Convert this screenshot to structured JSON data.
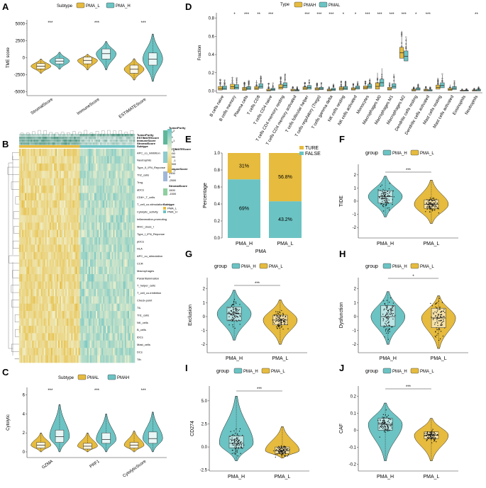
{
  "colors": {
    "gold": "#E6BB3E",
    "teal": "#6CC3C3",
    "grid": "#e6e6e6",
    "axis": "#333333"
  },
  "panel_letters": [
    "A",
    "B",
    "C",
    "D",
    "E",
    "F",
    "G",
    "H",
    "I",
    "J"
  ],
  "chart_data": [
    {
      "id": "A",
      "type": "violin",
      "legend_title": "Subtype",
      "legend": [
        "PMA_L",
        "PMA_H"
      ],
      "ylabel": "TME score",
      "yticks": [
        5000,
        2500,
        0,
        -2500,
        -5000
      ],
      "ylim": [
        -5600,
        5600
      ],
      "categories": [
        "StromalScore",
        "ImmuneScore",
        "ESTIMATEScore"
      ],
      "significance": [
        "***",
        "***",
        "***"
      ],
      "series": [
        {
          "name": "PMA_L",
          "medians": [
            -1250,
            -400,
            -1700
          ],
          "q1": [
            -1650,
            -900,
            -2300
          ],
          "q3": [
            -850,
            100,
            -1100
          ],
          "min": [
            -2300,
            -1800,
            -3300
          ],
          "max": [
            -200,
            500,
            -150
          ]
        },
        {
          "name": "PMA_H",
          "medians": [
            -500,
            600,
            -200
          ],
          "q1": [
            -900,
            -200,
            -1100
          ],
          "q3": [
            -100,
            1300,
            700
          ],
          "min": [
            -1700,
            -1800,
            -3500
          ],
          "max": [
            800,
            2400,
            3500
          ]
        }
      ]
    },
    {
      "id": "B",
      "type": "heatmap",
      "rows": [
        "APC_co_inhibition",
        "Neutrophils",
        "Type_II_IFN_Reponse",
        "Th2_cells",
        "Treg",
        "aDCs",
        "CD8+_T_cells",
        "T_cell_co-stimulation",
        "Cytolytic_activity",
        "Inflammation-promoting",
        "MHC_class_I",
        "Type_I_IFN_Reponse",
        "pDCs",
        "HLA",
        "APC_co_stimulation",
        "CCR",
        "Macrophages",
        "Parainflammation",
        "T_helper_cells",
        "T_cell_co-inhibition",
        "Check-point",
        "TIL",
        "Th1_cells",
        "NK_cells",
        "B_cells",
        "iDCs",
        "Mast_cells",
        "DCs",
        "Tfh"
      ],
      "annotation_tracks": [
        "TumorPurity",
        "ESTIMATEScore",
        "ImmuneScore",
        "StromalScore",
        "Subtype"
      ],
      "legend": [
        {
          "title": "TumorPurity",
          "ticks": [
            "0.9",
            "0.6",
            "0.3"
          ]
        },
        {
          "title": "ESTIMATEScore",
          "ticks": [
            "5000",
            "2500",
            "0",
            "-2500"
          ]
        },
        {
          "title": "ImmuneScore",
          "ticks": [
            "2500",
            "0",
            "-2500"
          ]
        },
        {
          "title": "StromalScore",
          "ticks": [
            "1500",
            "-1500"
          ]
        },
        {
          "title": "Subtype",
          "entries": [
            "PMA_L",
            "PMA_H"
          ]
        }
      ],
      "scale_ticks": [
        "2",
        "1",
        "0",
        "-1",
        "-2"
      ]
    },
    {
      "id": "C",
      "type": "violin",
      "legend_title": "Subtype",
      "legend": [
        "PMAL",
        "PMAH"
      ],
      "ylabel": "Cytolytic",
      "yticks": [
        0,
        2,
        4,
        6
      ],
      "ylim": [
        -0.6,
        6.8
      ],
      "categories": [
        "GZMA",
        "PRF1",
        "CytolyticScore"
      ],
      "significance": [
        "***",
        "***",
        "***"
      ],
      "series": [
        {
          "name": "PMAL",
          "medians": [
            0.7,
            0.6,
            0.7
          ],
          "q1": [
            0.4,
            0.3,
            0.4
          ],
          "q3": [
            1.0,
            0.9,
            1.0
          ],
          "min": [
            0.0,
            0.0,
            0.0
          ],
          "max": [
            2.0,
            2.0,
            2.2
          ]
        },
        {
          "name": "PMAH",
          "medians": [
            1.6,
            1.3,
            1.4
          ],
          "q1": [
            1.0,
            0.9,
            0.9
          ],
          "q3": [
            2.3,
            2.0,
            2.1
          ],
          "min": [
            0.0,
            0.0,
            0.0
          ],
          "max": [
            5.0,
            4.0,
            4.2
          ]
        }
      ]
    },
    {
      "id": "D",
      "type": "boxplot",
      "legend_title": "Type",
      "legend": [
        "PMAH",
        "PMAL"
      ],
      "ylabel": "Fraction",
      "yticks": [
        0.0,
        0.2,
        0.4,
        0.6,
        0.8
      ],
      "ylim": [
        -0.02,
        0.86
      ],
      "categories": [
        "B cells naive",
        "B cells memory",
        "Plasma cells",
        "T cells CD8",
        "T cells CD4 naive",
        "T cells CD4 memory resting",
        "T cells CD4 memory activated",
        "T cells follicular helper",
        "T cells regulatory (Tregs)",
        "T cells gamma delta",
        "NK cells resting",
        "NK cells activated",
        "Monocytes",
        "Macrophages M0",
        "Macrophages M1",
        "Macrophages M2",
        "Dendritic cells resting",
        "Dendritic cells activated",
        "Mast cells resting",
        "Mast cells activated",
        "Eosinophils",
        "Neutrophils"
      ],
      "significance": [
        "",
        "*",
        "***",
        "**",
        "***",
        "",
        "",
        "***",
        "***",
        "***",
        "*",
        "*",
        "***",
        "***",
        "***",
        "***",
        "*",
        "***",
        "",
        "",
        "",
        "**"
      ],
      "series": [
        {
          "name": "PMAH",
          "medians": [
            0.025,
            0.045,
            0.02,
            0.03,
            0.005,
            0.04,
            0.01,
            0.03,
            0.02,
            0.01,
            0.025,
            0.02,
            0.035,
            0.05,
            0.02,
            0.42,
            0.01,
            0.01,
            0.04,
            0.015,
            0.003,
            0.005
          ],
          "q1": [
            0.01,
            0.02,
            0.005,
            0.015,
            0.0,
            0.02,
            0.0,
            0.015,
            0.01,
            0.0,
            0.01,
            0.01,
            0.02,
            0.02,
            0.01,
            0.36,
            0.0,
            0.0,
            0.02,
            0.005,
            0.0,
            0.0
          ],
          "q3": [
            0.05,
            0.075,
            0.04,
            0.05,
            0.02,
            0.07,
            0.02,
            0.045,
            0.035,
            0.02,
            0.045,
            0.035,
            0.055,
            0.09,
            0.04,
            0.48,
            0.02,
            0.02,
            0.065,
            0.03,
            0.008,
            0.012
          ],
          "max": [
            0.12,
            0.15,
            0.1,
            0.12,
            0.08,
            0.15,
            0.05,
            0.09,
            0.08,
            0.05,
            0.1,
            0.08,
            0.11,
            0.2,
            0.09,
            0.66,
            0.05,
            0.05,
            0.13,
            0.07,
            0.02,
            0.03
          ]
        },
        {
          "name": "PMAL",
          "medians": [
            0.03,
            0.04,
            0.03,
            0.05,
            0.015,
            0.06,
            0.005,
            0.04,
            0.025,
            0.015,
            0.03,
            0.035,
            0.05,
            0.09,
            0.05,
            0.38,
            0.02,
            0.005,
            0.06,
            0.03,
            0.005,
            0.01
          ],
          "q1": [
            0.015,
            0.02,
            0.015,
            0.03,
            0.005,
            0.035,
            0.0,
            0.02,
            0.015,
            0.005,
            0.015,
            0.02,
            0.03,
            0.05,
            0.03,
            0.33,
            0.01,
            0.0,
            0.035,
            0.015,
            0.0,
            0.0
          ],
          "q3": [
            0.055,
            0.07,
            0.05,
            0.08,
            0.03,
            0.09,
            0.015,
            0.06,
            0.04,
            0.03,
            0.05,
            0.055,
            0.075,
            0.13,
            0.08,
            0.44,
            0.035,
            0.015,
            0.09,
            0.05,
            0.01,
            0.02
          ],
          "max": [
            0.12,
            0.14,
            0.11,
            0.17,
            0.08,
            0.18,
            0.04,
            0.12,
            0.09,
            0.07,
            0.11,
            0.1,
            0.14,
            0.25,
            0.17,
            0.58,
            0.08,
            0.04,
            0.18,
            0.11,
            0.02,
            0.05
          ]
        }
      ]
    },
    {
      "id": "E",
      "type": "stacked_bar",
      "legend": [
        "TURE",
        "FALSE"
      ],
      "ylabel": "Percentage",
      "xlabel": "PMA",
      "yticks": [
        "0.0",
        "0.2",
        "0.4",
        "0.6",
        "0.8",
        "1.0"
      ],
      "ylim": [
        0,
        1
      ],
      "categories": [
        "PMA_H",
        "PMA_L"
      ],
      "series": [
        {
          "name": "FALSE",
          "values": [
            0.69,
            0.432
          ],
          "labels": [
            "69%",
            "43.2%"
          ]
        },
        {
          "name": "TURE",
          "values": [
            0.31,
            0.568
          ],
          "labels": [
            "31%",
            "56.8%"
          ]
        }
      ]
    },
    {
      "id": "F",
      "type": "violin",
      "legend_title": "group",
      "legend": [
        "PMA_H",
        "PMA_L"
      ],
      "ylabel": "TIDE",
      "yticks": [
        2,
        1,
        0,
        -1,
        -2
      ],
      "ylim": [
        -2.8,
        2.8
      ],
      "categories": [
        "PMA_H",
        "PMA_L"
      ],
      "significance": [
        "***"
      ],
      "medians": [
        0.35,
        -0.25
      ],
      "q1": [
        -0.15,
        -0.55
      ],
      "q3": [
        0.8,
        0.1
      ],
      "min": [
        -1.2,
        -1.7
      ],
      "max": [
        1.9,
        1.6
      ]
    },
    {
      "id": "G",
      "type": "violin",
      "legend_title": "group",
      "legend": [
        "PMA_H",
        "PMA_L"
      ],
      "ylabel": "Exclusion",
      "yticks": [
        2,
        1,
        0,
        -1,
        -2
      ],
      "ylim": [
        -2.6,
        2.8
      ],
      "categories": [
        "PMA_H",
        "PMA_L"
      ],
      "significance": [
        "***"
      ],
      "medians": [
        0.2,
        -0.25
      ],
      "q1": [
        -0.3,
        -0.6
      ],
      "q3": [
        0.7,
        0.1
      ],
      "min": [
        -1.7,
        -2.0
      ],
      "max": [
        1.9,
        1.2
      ]
    },
    {
      "id": "H",
      "type": "violin",
      "legend_title": "group",
      "legend": [
        "PMA_H",
        "PMA_L"
      ],
      "ylabel": "Dysfunction",
      "yticks": [
        2,
        1,
        0,
        -1,
        -2
      ],
      "ylim": [
        -2.6,
        2.8
      ],
      "categories": [
        "PMA_H",
        "PMA_L"
      ],
      "significance": [
        "*"
      ],
      "medians": [
        0.0,
        -0.1
      ],
      "q1": [
        -0.7,
        -0.8
      ],
      "q3": [
        0.8,
        0.6
      ],
      "min": [
        -2.0,
        -2.3
      ],
      "max": [
        1.8,
        1.5
      ]
    },
    {
      "id": "I",
      "type": "violin",
      "legend_title": "group",
      "legend": [
        "PMA_H",
        "PMA_L"
      ],
      "ylabel": "CD274",
      "yticks": [
        5.0,
        2.5,
        0.0,
        -2.5
      ],
      "ylim": [
        -2.6,
        6.6
      ],
      "categories": [
        "PMA_H",
        "PMA_L"
      ],
      "significance": [
        "***"
      ],
      "medians": [
        0.4,
        -0.4
      ],
      "q1": [
        -0.1,
        -0.7
      ],
      "q3": [
        1.2,
        0.0
      ],
      "min": [
        -1.5,
        -1.2
      ],
      "max": [
        5.5,
        2.2
      ]
    },
    {
      "id": "J",
      "type": "violin",
      "legend_title": "group",
      "legend": [
        "PMA_H",
        "PMA_L"
      ],
      "ylabel": "CAF",
      "yticks": [
        0.2,
        0.1,
        0.0,
        -0.1,
        -0.2
      ],
      "ylim": [
        -0.24,
        0.26
      ],
      "categories": [
        "PMA_H",
        "PMA_L"
      ],
      "significance": [
        "***"
      ],
      "medians": [
        0.035,
        -0.03
      ],
      "q1": [
        0.0,
        -0.05
      ],
      "q3": [
        0.07,
        -0.01
      ],
      "min": [
        -0.18,
        -0.18
      ],
      "max": [
        0.16,
        0.07
      ]
    }
  ]
}
